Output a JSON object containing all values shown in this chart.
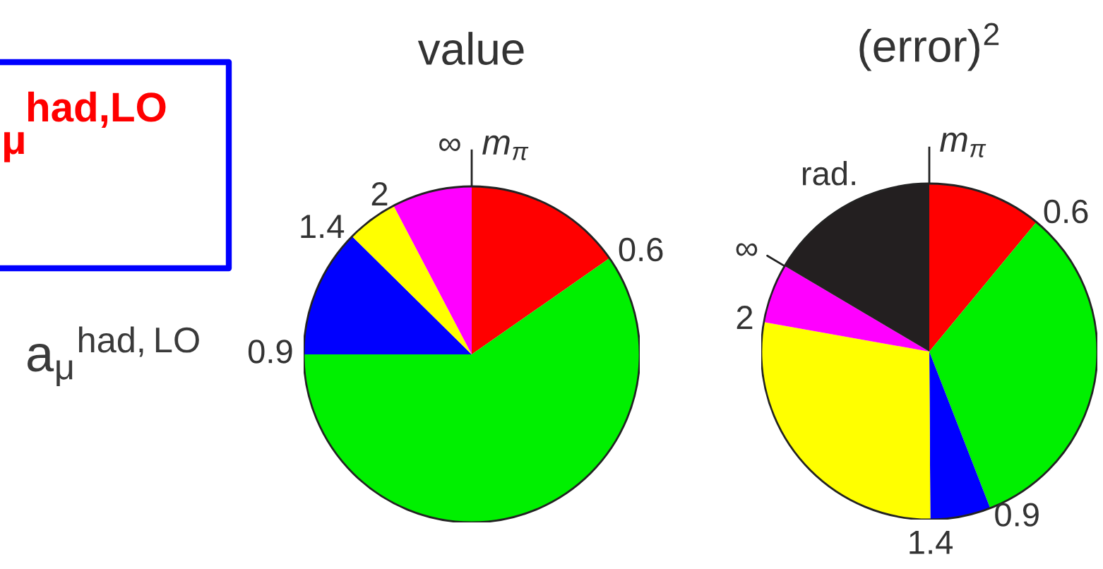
{
  "chart_data": [
    {
      "type": "other",
      "annotations": [
        "had,LO",
        "μ",
        "a$_{μ}$$^{had,LO}$"
      ]
    },
    {
      "type": "pie",
      "title": "value",
      "categories": [
        "0.6",
        "0.9",
        "1.4",
        "2",
        "∞"
      ],
      "values": [
        15.3,
        59.7,
        12.4,
        4.9,
        7.7
      ],
      "colors": [
        "#ff0000",
        "#00f000",
        "#0000ff",
        "#ffff00",
        "#ff00ff"
      ],
      "annotations": [
        "m$_{π}$"
      ]
    },
    {
      "type": "pie",
      "title": "(error)$^{2}$",
      "categories": [
        "0.6",
        "0.9",
        "1.4",
        "2",
        "∞",
        null
      ],
      "values": [
        11.0,
        33.1,
        5.8,
        27.9,
        5.7,
        16.5
      ],
      "colors": [
        "#ff0000",
        "#00f000",
        "#0000ff",
        "#ffff00",
        "#ff00ff",
        "#231f20"
      ],
      "annotations": [
        "m$_{π}$",
        "rad."
      ]
    }
  ]
}
